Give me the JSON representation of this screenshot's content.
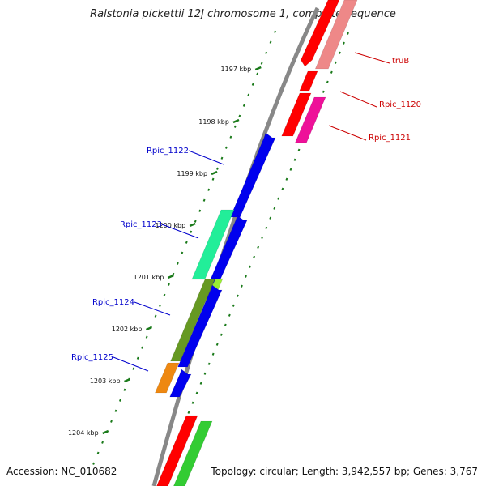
{
  "title": "Ralstonia pickettii 12J chromosome 1, complete sequence",
  "footer": {
    "accession": "Accession: NC_010682",
    "topology": "Topology: circular; Length: 3,942,557 bp; Genes: 3,767"
  },
  "kbp_ticks": [
    "1197 kbp",
    "1198 kbp",
    "1199 kbp",
    "1200 kbp",
    "1201 kbp",
    "1202 kbp",
    "1203 kbp",
    "1204 kbp"
  ],
  "gene_labels": {
    "right": [
      "truB",
      "Rpic_1120",
      "Rpic_1121"
    ],
    "left": [
      "Rpic_1122",
      "Rpic_1123",
      "Rpic_1124",
      "Rpic_1125"
    ]
  },
  "colors": {
    "backbone": "#888888",
    "ticks": "#1a7a1a",
    "left_label": "#0000cc",
    "right_label": "#cc0000",
    "red": "#ff0000",
    "pink": "#ee8888",
    "magenta": "#ee1199",
    "blue": "#0000ee",
    "aqua": "#22ee99",
    "olive": "#669922",
    "lime": "#99ee33",
    "orange": "#ee8811",
    "green": "#33cc33"
  }
}
